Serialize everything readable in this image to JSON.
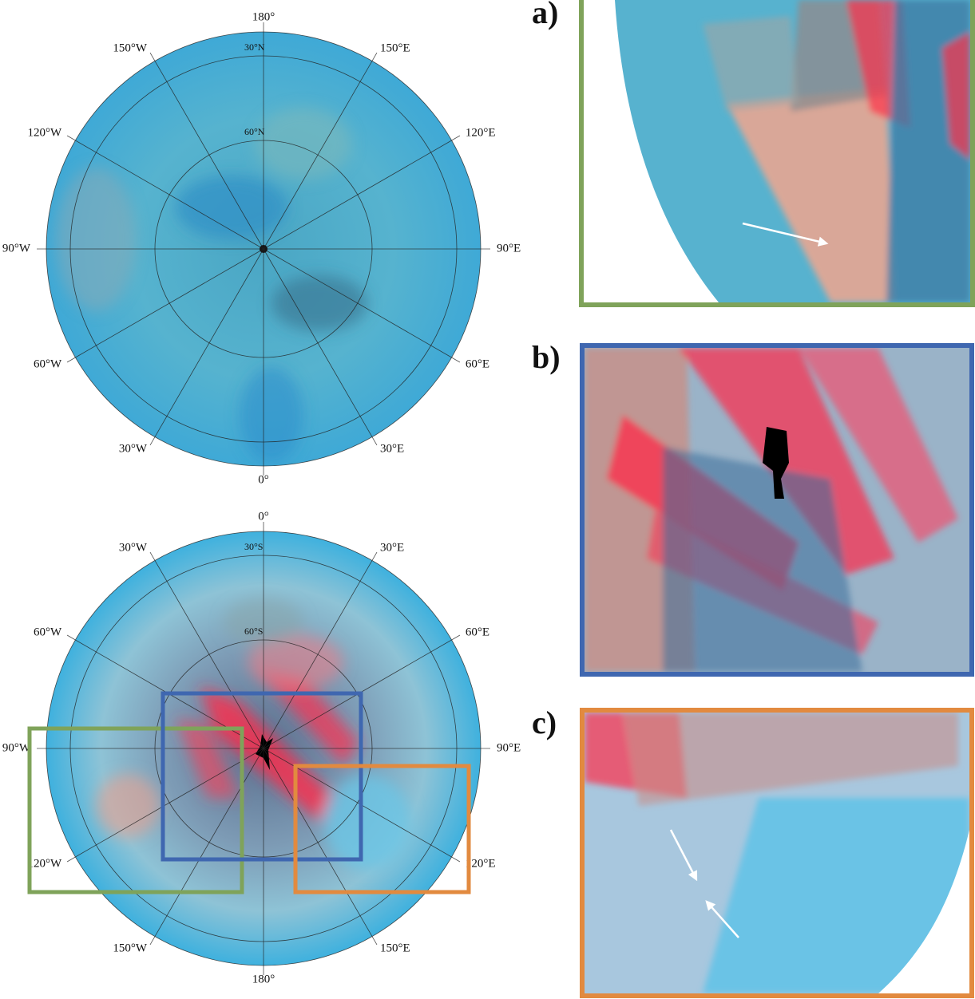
{
  "maps": [
    {
      "longitude_labels": [
        "180°",
        "150°E",
        "120°E",
        "90°E",
        "60°E",
        "30°E",
        "0°",
        "30°W",
        "60°W",
        "90°W",
        "120°W",
        "150°W"
      ],
      "latitude_labels": [
        "30°N",
        "60°N"
      ]
    },
    {
      "longitude_labels": [
        "0°",
        "30°E",
        "60°E",
        "90°E",
        "120°E",
        "150°E",
        "180°",
        "150°W",
        "120°W",
        "90°W",
        "60°W",
        "30°W"
      ],
      "latitude_labels": [
        "30°S",
        "60°S"
      ]
    }
  ],
  "panels": [
    {
      "label": "a)"
    },
    {
      "label": "b)"
    },
    {
      "label": "c)"
    }
  ]
}
